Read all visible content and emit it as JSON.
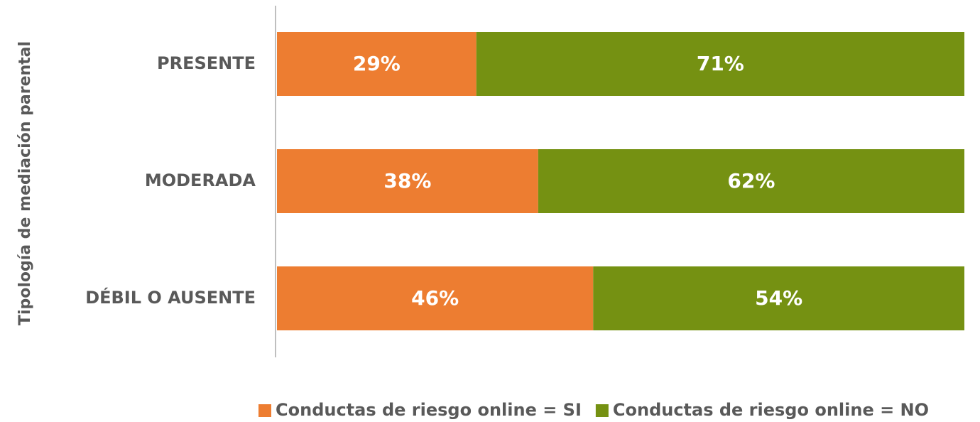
{
  "chart_data": {
    "type": "stacked_barh",
    "y_label": "Tipología de mediación parental",
    "categories": [
      "PRESENTE",
      "MODERADA",
      "DÉBIL O AUSENTE"
    ],
    "xlim": [
      0,
      100
    ],
    "legend": "bottom",
    "series": [
      {
        "name": "Conductas de riesgo online = SI",
        "color": "#ed7d31",
        "values": [
          29,
          38,
          46
        ],
        "value_labels": [
          "29%",
          "38%",
          "46%"
        ]
      },
      {
        "name": "Conductas de riesgo online = NO",
        "color": "#759112",
        "values": [
          71,
          62,
          54
        ],
        "value_labels": [
          "71%",
          "62%",
          "54%"
        ]
      }
    ]
  }
}
